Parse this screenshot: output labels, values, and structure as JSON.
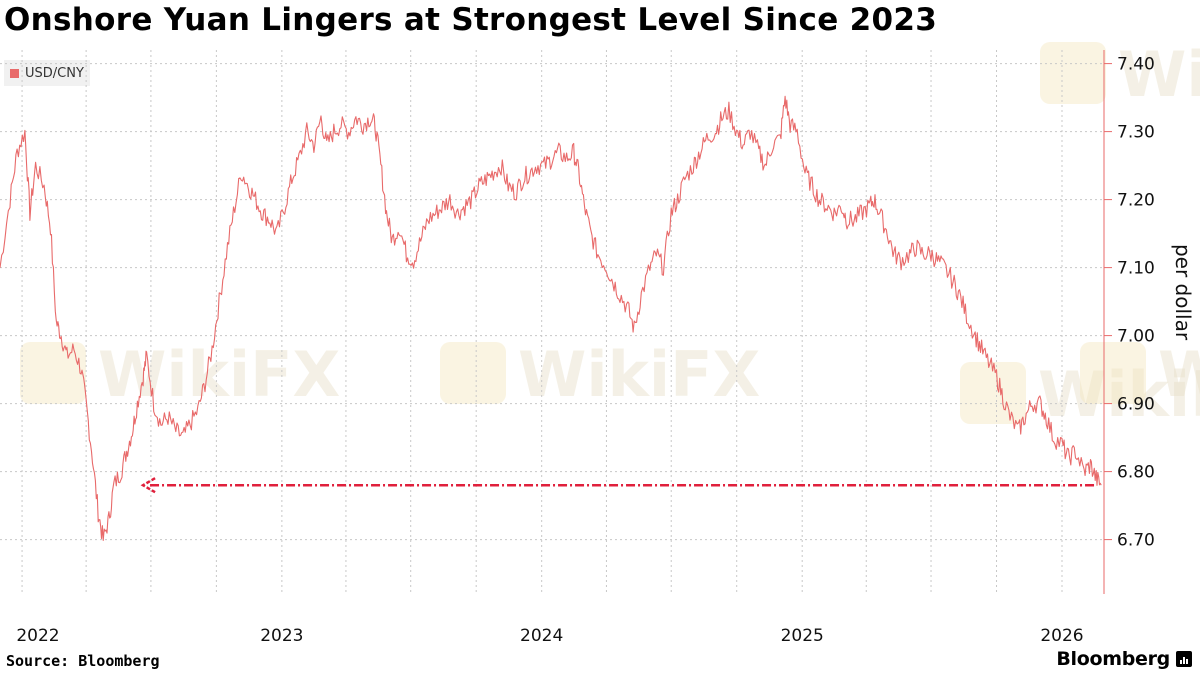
{
  "watermark": "WikiFX",
  "footer": {
    "source": "Source: Bloomberg",
    "brand": "Bloomberg"
  },
  "colors": {
    "series": "#e86a6a",
    "annotation": "#e0203c",
    "grid": "#c8c8c8"
  },
  "chart_data": {
    "type": "line",
    "title": "Onshore Yuan Lingers at Strongest Level Since 2023",
    "ylabel": "per dollar",
    "legend": "top-left",
    "grid": true,
    "x_range": [
      "2021-12-01",
      "2026-03-01"
    ],
    "ylim": [
      6.62,
      7.42
    ],
    "y_ticks": [
      7.4,
      7.3,
      7.2,
      7.1,
      7.0,
      6.9,
      6.8,
      6.7
    ],
    "y_tick_labels": [
      "7.40",
      "7.30",
      "7.20",
      "7.10",
      "7.00",
      "6.90",
      "6.80",
      "6.70"
    ],
    "x_tick_labels": [
      {
        "label": "2022",
        "date": "2022-01-01"
      },
      {
        "label": "2023",
        "date": "2023-01-01"
      },
      {
        "label": "2024",
        "date": "2024-01-01"
      },
      {
        "label": "2025",
        "date": "2025-01-01"
      },
      {
        "label": "2026",
        "date": "2026-01-01"
      }
    ],
    "series": [
      {
        "name": "USD/CNY",
        "points": [
          [
            "2021-12-01",
            7.1
          ],
          [
            "2021-12-15",
            7.2
          ],
          [
            "2021-12-25",
            7.27
          ],
          [
            "2022-01-05",
            7.3
          ],
          [
            "2022-01-12",
            7.18
          ],
          [
            "2022-01-20",
            7.25
          ],
          [
            "2022-02-01",
            7.22
          ],
          [
            "2022-02-10",
            7.16
          ],
          [
            "2022-02-18",
            7.02
          ],
          [
            "2022-02-25",
            7.0
          ],
          [
            "2022-03-05",
            6.97
          ],
          [
            "2022-03-15",
            6.98
          ],
          [
            "2022-03-25",
            6.95
          ],
          [
            "2022-04-01",
            6.9
          ],
          [
            "2022-04-10",
            6.82
          ],
          [
            "2022-04-18",
            6.74
          ],
          [
            "2022-04-25",
            6.7
          ],
          [
            "2022-05-03",
            6.73
          ],
          [
            "2022-05-10",
            6.78
          ],
          [
            "2022-05-20",
            6.8
          ],
          [
            "2022-05-28",
            6.83
          ],
          [
            "2022-06-05",
            6.86
          ],
          [
            "2022-06-12",
            6.9
          ],
          [
            "2022-06-20",
            6.94
          ],
          [
            "2022-06-25",
            6.97
          ],
          [
            "2022-07-05",
            6.9
          ],
          [
            "2022-07-15",
            6.87
          ],
          [
            "2022-07-25",
            6.88
          ],
          [
            "2022-08-05",
            6.86
          ],
          [
            "2022-08-15",
            6.85
          ],
          [
            "2022-08-25",
            6.87
          ],
          [
            "2022-09-05",
            6.89
          ],
          [
            "2022-09-15",
            6.93
          ],
          [
            "2022-09-25",
            6.98
          ],
          [
            "2022-10-05",
            7.05
          ],
          [
            "2022-10-15",
            7.12
          ],
          [
            "2022-10-25",
            7.18
          ],
          [
            "2022-11-05",
            7.24
          ],
          [
            "2022-11-15",
            7.22
          ],
          [
            "2022-11-25",
            7.2
          ],
          [
            "2022-12-05",
            7.18
          ],
          [
            "2022-12-15",
            7.17
          ],
          [
            "2022-12-25",
            7.15
          ],
          [
            "2023-01-05",
            7.19
          ],
          [
            "2023-01-15",
            7.23
          ],
          [
            "2023-01-25",
            7.26
          ],
          [
            "2023-02-05",
            7.3
          ],
          [
            "2023-02-15",
            7.28
          ],
          [
            "2023-02-25",
            7.32
          ],
          [
            "2023-03-05",
            7.28
          ],
          [
            "2023-03-15",
            7.3
          ],
          [
            "2023-03-25",
            7.31
          ],
          [
            "2023-04-05",
            7.3
          ],
          [
            "2023-04-15",
            7.32
          ],
          [
            "2023-04-25",
            7.31
          ],
          [
            "2023-05-05",
            7.32
          ],
          [
            "2023-05-12",
            7.31
          ],
          [
            "2023-05-20",
            7.25
          ],
          [
            "2023-05-28",
            7.18
          ],
          [
            "2023-06-05",
            7.14
          ],
          [
            "2023-06-15",
            7.16
          ],
          [
            "2023-06-25",
            7.12
          ],
          [
            "2023-07-05",
            7.11
          ],
          [
            "2023-07-15",
            7.14
          ],
          [
            "2023-07-25",
            7.17
          ],
          [
            "2023-08-05",
            7.18
          ],
          [
            "2023-08-15",
            7.19
          ],
          [
            "2023-08-25",
            7.2
          ],
          [
            "2023-09-05",
            7.18
          ],
          [
            "2023-09-15",
            7.19
          ],
          [
            "2023-09-25",
            7.2
          ],
          [
            "2023-10-05",
            7.22
          ],
          [
            "2023-10-15",
            7.23
          ],
          [
            "2023-10-25",
            7.24
          ],
          [
            "2023-11-05",
            7.25
          ],
          [
            "2023-11-15",
            7.22
          ],
          [
            "2023-11-25",
            7.21
          ],
          [
            "2023-12-05",
            7.23
          ],
          [
            "2023-12-15",
            7.24
          ],
          [
            "2023-12-25",
            7.25
          ],
          [
            "2024-01-05",
            7.25
          ],
          [
            "2024-01-15",
            7.26
          ],
          [
            "2024-01-25",
            7.27
          ],
          [
            "2024-02-05",
            7.26
          ],
          [
            "2024-02-15",
            7.27
          ],
          [
            "2024-02-22",
            7.24
          ],
          [
            "2024-03-01",
            7.19
          ],
          [
            "2024-03-10",
            7.15
          ],
          [
            "2024-03-20",
            7.12
          ],
          [
            "2024-04-01",
            7.1
          ],
          [
            "2024-04-10",
            7.08
          ],
          [
            "2024-04-20",
            7.06
          ],
          [
            "2024-05-01",
            7.04
          ],
          [
            "2024-05-10",
            7.01
          ],
          [
            "2024-05-20",
            7.06
          ],
          [
            "2024-06-01",
            7.1
          ],
          [
            "2024-06-10",
            7.12
          ],
          [
            "2024-06-20",
            7.1
          ],
          [
            "2024-07-01",
            7.18
          ],
          [
            "2024-07-10",
            7.2
          ],
          [
            "2024-07-20",
            7.23
          ],
          [
            "2024-08-01",
            7.25
          ],
          [
            "2024-08-10",
            7.27
          ],
          [
            "2024-08-20",
            7.29
          ],
          [
            "2024-09-01",
            7.3
          ],
          [
            "2024-09-10",
            7.32
          ],
          [
            "2024-09-20",
            7.33
          ],
          [
            "2024-10-01",
            7.3
          ],
          [
            "2024-10-10",
            7.28
          ],
          [
            "2024-10-20",
            7.3
          ],
          [
            "2024-11-01",
            7.27
          ],
          [
            "2024-11-10",
            7.25
          ],
          [
            "2024-11-20",
            7.28
          ],
          [
            "2024-12-01",
            7.29
          ],
          [
            "2024-12-08",
            7.35
          ],
          [
            "2024-12-15",
            7.31
          ],
          [
            "2024-12-25",
            7.3
          ],
          [
            "2025-01-05",
            7.24
          ],
          [
            "2025-01-15",
            7.22
          ],
          [
            "2025-01-25",
            7.2
          ],
          [
            "2025-02-05",
            7.19
          ],
          [
            "2025-02-15",
            7.18
          ],
          [
            "2025-02-25",
            7.19
          ],
          [
            "2025-03-05",
            7.17
          ],
          [
            "2025-03-15",
            7.17
          ],
          [
            "2025-03-25",
            7.18
          ],
          [
            "2025-04-05",
            7.19
          ],
          [
            "2025-04-12",
            7.2
          ],
          [
            "2025-04-20",
            7.18
          ],
          [
            "2025-05-01",
            7.15
          ],
          [
            "2025-05-10",
            7.12
          ],
          [
            "2025-05-20",
            7.11
          ],
          [
            "2025-06-01",
            7.12
          ],
          [
            "2025-06-10",
            7.13
          ],
          [
            "2025-06-20",
            7.12
          ],
          [
            "2025-07-01",
            7.12
          ],
          [
            "2025-07-10",
            7.11
          ],
          [
            "2025-07-20",
            7.1
          ],
          [
            "2025-08-01",
            7.08
          ],
          [
            "2025-08-10",
            7.06
          ],
          [
            "2025-08-20",
            7.03
          ],
          [
            "2025-09-01",
            7.0
          ],
          [
            "2025-09-10",
            6.98
          ],
          [
            "2025-09-20",
            6.96
          ],
          [
            "2025-10-01",
            6.94
          ],
          [
            "2025-10-10",
            6.91
          ],
          [
            "2025-10-20",
            6.88
          ],
          [
            "2025-11-01",
            6.86
          ],
          [
            "2025-11-10",
            6.88
          ],
          [
            "2025-11-20",
            6.9
          ],
          [
            "2025-12-01",
            6.9
          ],
          [
            "2025-12-10",
            6.88
          ],
          [
            "2025-12-20",
            6.85
          ],
          [
            "2026-01-01",
            6.84
          ],
          [
            "2026-01-10",
            6.82
          ],
          [
            "2026-01-20",
            6.83
          ],
          [
            "2026-02-01",
            6.8
          ],
          [
            "2026-02-10",
            6.81
          ],
          [
            "2026-02-18",
            6.79
          ],
          [
            "2026-02-25",
            6.78
          ]
        ]
      }
    ],
    "annotations": [
      {
        "type": "arrow",
        "style": "dashed",
        "y": 6.78,
        "from": "2026-02-15",
        "to": "2022-06-20"
      }
    ]
  }
}
